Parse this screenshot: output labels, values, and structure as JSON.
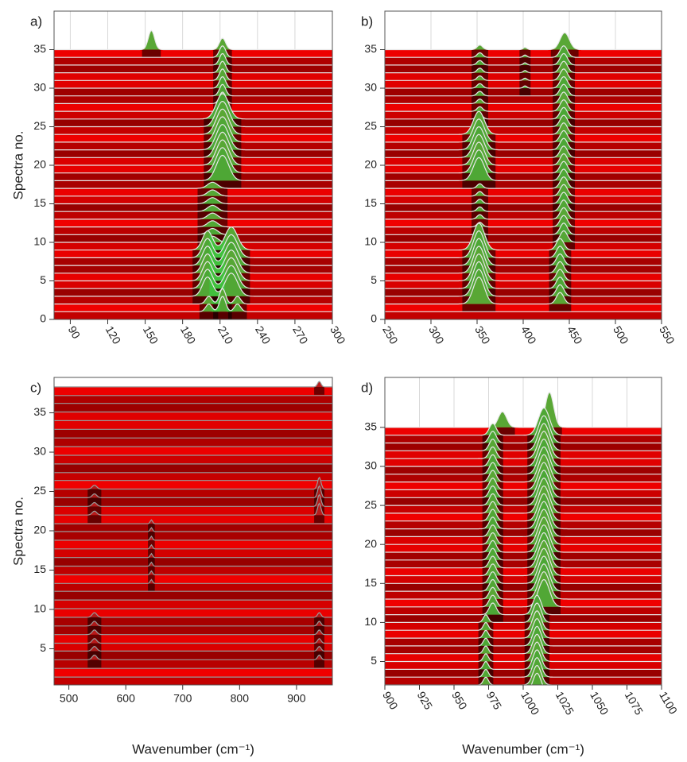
{
  "chart_data": [
    {
      "type": "waterfall",
      "label": "a)",
      "ylabel": "Spectra no.",
      "xlim": [
        77,
        300
      ],
      "xticks": [
        90,
        120,
        150,
        180,
        210,
        240,
        270,
        300
      ],
      "ylim": [
        0,
        40
      ],
      "yticks": [
        0,
        5,
        10,
        15,
        20,
        25,
        30,
        35
      ],
      "rotated_xticks": true,
      "grid": true,
      "line_color": "#e8e8e8",
      "peak_color": "#3ec43e",
      "offsets": [
        1,
        2,
        3,
        4,
        5,
        6,
        7,
        8,
        9,
        10,
        11,
        12,
        13,
        14,
        15,
        16,
        17,
        18,
        19,
        20,
        21,
        22,
        23,
        24,
        25,
        26,
        27,
        28,
        29,
        30,
        31,
        32,
        33,
        34,
        35
      ],
      "peaks": [
        {
          "x": 155,
          "width": 2.5,
          "height": 2.5,
          "spectra": [
            35,
            35
          ]
        },
        {
          "x": 212,
          "width": 2.5,
          "height": 1.5,
          "spectra": [
            27,
            35
          ]
        },
        {
          "x": 212,
          "width": 5,
          "height": 3.3,
          "spectra": [
            18,
            26
          ]
        },
        {
          "x": 204,
          "width": 4,
          "height": 0.8,
          "spectra": [
            10,
            17
          ]
        },
        {
          "x": 200,
          "width": 4,
          "height": 2.5,
          "spectra": [
            3,
            9
          ]
        },
        {
          "x": 219,
          "width": 5,
          "height": 3,
          "spectra": [
            3,
            9
          ]
        },
        {
          "x": 201,
          "width": 2.5,
          "height": 1,
          "spectra": [
            1,
            2
          ]
        },
        {
          "x": 212,
          "width": 2.5,
          "height": 2,
          "spectra": [
            1,
            2
          ]
        },
        {
          "x": 224,
          "width": 2.5,
          "height": 1,
          "spectra": [
            1,
            2
          ]
        }
      ]
    },
    {
      "type": "waterfall",
      "label": "b)",
      "xlim": [
        250,
        550
      ],
      "xticks": [
        250,
        300,
        350,
        400,
        450,
        500,
        550
      ],
      "ylim": [
        0,
        40
      ],
      "yticks": [
        0,
        5,
        10,
        15,
        20,
        25,
        30,
        35
      ],
      "rotated_xticks": true,
      "grid": true,
      "line_color": "#e8e8e8",
      "peak_color": "#3ec43e",
      "offsets": [
        1,
        2,
        3,
        4,
        5,
        6,
        7,
        8,
        9,
        10,
        11,
        12,
        13,
        14,
        15,
        16,
        17,
        18,
        19,
        20,
        21,
        22,
        23,
        24,
        25,
        26,
        27,
        28,
        29,
        30,
        31,
        32,
        33,
        34,
        35
      ],
      "peaks": [
        {
          "x": 445,
          "width": 5,
          "height": 2.2,
          "spectra": [
            35,
            35
          ]
        },
        {
          "x": 444,
          "width": 4,
          "height": 1.5,
          "spectra": [
            10,
            34
          ]
        },
        {
          "x": 352,
          "width": 6,
          "height": 3,
          "spectra": [
            18,
            24
          ]
        },
        {
          "x": 353,
          "width": 3,
          "height": 0.6,
          "spectra": [
            25,
            35
          ]
        },
        {
          "x": 352,
          "width": 6,
          "height": 3.5,
          "spectra": [
            2,
            9
          ]
        },
        {
          "x": 353,
          "width": 3,
          "height": 0.6,
          "spectra": [
            10,
            17
          ]
        },
        {
          "x": 440,
          "width": 4,
          "height": 1.5,
          "spectra": [
            2,
            9
          ]
        },
        {
          "x": 402,
          "width": 2,
          "height": 0.3,
          "spectra": [
            30,
            35
          ]
        }
      ]
    },
    {
      "type": "waterfall",
      "label": "c)",
      "ylabel": "Spectra no.",
      "xlabel": "Wavenumber (cm⁻¹)",
      "xlim": [
        474,
        963
      ],
      "xticks": [
        500,
        600,
        700,
        800,
        900
      ],
      "ylim": [
        0.4,
        39.5
      ],
      "yticks": [
        5,
        10,
        15,
        20,
        25,
        30,
        35
      ],
      "rotated_xticks": false,
      "grid": false,
      "line_color": "#9a9a9a",
      "peak_color": "#b02020",
      "offsets": [
        1.4,
        2.5,
        3.6,
        4.7,
        5.7,
        6.8,
        7.9,
        9.0,
        10.1,
        11.2,
        12.3,
        13.3,
        14.4,
        15.5,
        16.6,
        17.7,
        18.8,
        19.9,
        20.9,
        22.0,
        23.1,
        24.2,
        25.3,
        26.4,
        27.4,
        28.5,
        29.6,
        30.7,
        31.8,
        32.9,
        34.0,
        35.1,
        36.2,
        37.2,
        38.3
      ],
      "peaks": [
        {
          "x": 940,
          "width": 3,
          "height": 1.5,
          "spectra": [
            20,
            23
          ]
        },
        {
          "x": 545,
          "width": 4,
          "height": 0.6,
          "spectra": [
            3,
            8
          ]
        },
        {
          "x": 940,
          "width": 3,
          "height": 0.6,
          "spectra": [
            3,
            8
          ]
        },
        {
          "x": 645,
          "width": 2,
          "height": 0.5,
          "spectra": [
            12,
            19
          ]
        },
        {
          "x": 545,
          "width": 4,
          "height": 0.5,
          "spectra": [
            20,
            23
          ]
        },
        {
          "x": 940,
          "width": 3,
          "height": 0.7,
          "spectra": [
            35,
            35
          ]
        }
      ]
    },
    {
      "type": "waterfall",
      "label": "d)",
      "xlabel": "Wavenumber (cm⁻¹)",
      "xlim": [
        900,
        1100
      ],
      "xticks": [
        900,
        925,
        950,
        975,
        1000,
        1025,
        1050,
        1075,
        1100
      ],
      "ylim": [
        2,
        41.4
      ],
      "yticks": [
        5,
        10,
        15,
        20,
        25,
        30,
        35
      ],
      "rotated_xticks": true,
      "grid": true,
      "line_color": "#e8e8e8",
      "peak_color": "#3ec43e",
      "offsets": [
        1,
        2,
        3,
        4,
        5,
        6,
        7,
        8,
        9,
        10,
        11,
        12,
        13,
        14,
        15,
        16,
        17,
        18,
        19,
        20,
        21,
        22,
        23,
        24,
        25,
        26,
        27,
        28,
        29,
        30,
        31,
        32,
        33,
        34,
        35
      ],
      "peaks": [
        {
          "x": 985,
          "width": 3,
          "height": 2,
          "spectra": [
            35,
            35
          ]
        },
        {
          "x": 1019,
          "width": 3,
          "height": 4.5,
          "spectra": [
            35,
            35
          ]
        },
        {
          "x": 978,
          "width": 2.5,
          "height": 1.5,
          "spectra": [
            11,
            34
          ]
        },
        {
          "x": 1015,
          "width": 4,
          "height": 3.5,
          "spectra": [
            12,
            34
          ]
        },
        {
          "x": 1010,
          "width": 3,
          "height": 2.5,
          "spectra": [
            1,
            11
          ]
        },
        {
          "x": 973,
          "width": 1.8,
          "height": 1,
          "spectra": [
            1,
            10
          ]
        }
      ]
    }
  ]
}
